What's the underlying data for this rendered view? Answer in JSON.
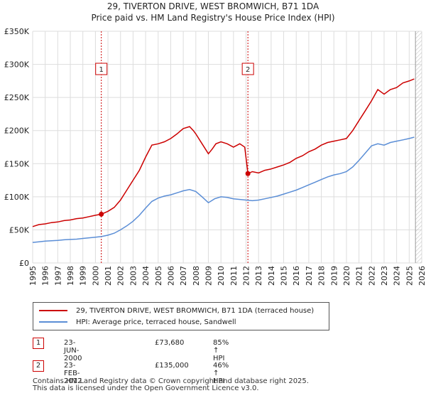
{
  "title": {
    "line1": "29, TIVERTON DRIVE, WEST BROMWICH, B71 1DA",
    "line2": "Price paid vs. HM Land Registry's House Price Index (HPI)"
  },
  "colors": {
    "property": "#cc0000",
    "hpi": "#5b8ed6",
    "marker_line": "#cc0000",
    "grid": "#dddddd"
  },
  "chart_data": {
    "type": "line",
    "title": "Price paid vs. HM Land Registry's House Price Index (HPI)",
    "xlabel": "",
    "ylabel": "",
    "xlim": [
      1995,
      2026
    ],
    "ylim": [
      0,
      350000
    ],
    "yticks": [
      {
        "value": 0,
        "label": "£0"
      },
      {
        "value": 50000,
        "label": "£50K"
      },
      {
        "value": 100000,
        "label": "£100K"
      },
      {
        "value": 150000,
        "label": "£150K"
      },
      {
        "value": 200000,
        "label": "£200K"
      },
      {
        "value": 250000,
        "label": "£250K"
      },
      {
        "value": 300000,
        "label": "£300K"
      },
      {
        "value": 350000,
        "label": "£350K"
      }
    ],
    "xticks": [
      "1995",
      "1996",
      "1997",
      "1998",
      "1999",
      "2000",
      "2001",
      "2002",
      "2003",
      "2004",
      "2005",
      "2006",
      "2007",
      "2008",
      "2009",
      "2010",
      "2011",
      "2012",
      "2013",
      "2014",
      "2015",
      "2016",
      "2017",
      "2018",
      "2019",
      "2020",
      "2021",
      "2022",
      "2023",
      "2024",
      "2025",
      "2026"
    ],
    "grid": true,
    "series": [
      {
        "name": "29, TIVERTON DRIVE, WEST BROMWICH, B71 1DA (terraced house)",
        "color": "#cc0000",
        "x": [
          1995.0,
          1995.5,
          1996.0,
          1996.5,
          1997.0,
          1997.5,
          1998.0,
          1998.5,
          1999.0,
          1999.5,
          2000.0,
          2000.47,
          2001.0,
          2001.5,
          2002.0,
          2002.5,
          2003.0,
          2003.5,
          2004.0,
          2004.5,
          2005.0,
          2005.5,
          2006.0,
          2006.5,
          2007.0,
          2007.5,
          2007.8,
          2008.0,
          2008.5,
          2009.0,
          2009.3,
          2009.6,
          2010.0,
          2010.5,
          2011.0,
          2011.5,
          2011.9,
          2012.15,
          2012.5,
          2013.0,
          2013.5,
          2014.0,
          2014.5,
          2015.0,
          2015.5,
          2016.0,
          2016.5,
          2017.0,
          2017.5,
          2018.0,
          2018.5,
          2019.0,
          2019.5,
          2020.0,
          2020.5,
          2021.0,
          2021.5,
          2022.0,
          2022.5,
          2023.0,
          2023.5,
          2024.0,
          2024.5,
          2025.0,
          2025.4
        ],
        "values": [
          55000,
          58000,
          59000,
          61000,
          62000,
          64000,
          65000,
          67000,
          68000,
          70000,
          72000,
          73680,
          78000,
          84000,
          95000,
          110000,
          125000,
          140000,
          160000,
          178000,
          180000,
          183000,
          188000,
          195000,
          203000,
          206000,
          200000,
          195000,
          180000,
          165000,
          172000,
          180000,
          183000,
          180000,
          175000,
          180000,
          175000,
          135000,
          138000,
          136000,
          140000,
          142000,
          145000,
          148000,
          152000,
          158000,
          162000,
          168000,
          172000,
          178000,
          182000,
          184000,
          186000,
          188000,
          200000,
          215000,
          230000,
          245000,
          262000,
          255000,
          262000,
          265000,
          272000,
          275000,
          278000
        ]
      },
      {
        "name": "HPI: Average price, terraced house, Sandwell",
        "color": "#5b8ed6",
        "x": [
          1995.0,
          1995.5,
          1996.0,
          1996.5,
          1997.0,
          1997.5,
          1998.0,
          1998.5,
          1999.0,
          1999.5,
          2000.0,
          2000.5,
          2001.0,
          2001.5,
          2002.0,
          2002.5,
          2003.0,
          2003.5,
          2004.0,
          2004.5,
          2005.0,
          2005.5,
          2006.0,
          2006.5,
          2007.0,
          2007.5,
          2008.0,
          2008.5,
          2009.0,
          2009.5,
          2010.0,
          2010.5,
          2011.0,
          2011.5,
          2012.0,
          2012.5,
          2013.0,
          2013.5,
          2014.0,
          2014.5,
          2015.0,
          2015.5,
          2016.0,
          2016.5,
          2017.0,
          2017.5,
          2018.0,
          2018.5,
          2019.0,
          2019.5,
          2020.0,
          2020.5,
          2021.0,
          2021.5,
          2022.0,
          2022.5,
          2023.0,
          2023.5,
          2024.0,
          2024.5,
          2025.0,
          2025.4
        ],
        "values": [
          31000,
          32000,
          33000,
          33500,
          34000,
          35000,
          35500,
          36000,
          37000,
          38000,
          39000,
          40000,
          42000,
          45000,
          50000,
          56000,
          63000,
          72000,
          83000,
          93000,
          98000,
          101000,
          103000,
          106000,
          109000,
          111000,
          108000,
          100000,
          91000,
          97000,
          100000,
          99000,
          97000,
          96000,
          95000,
          94000,
          95000,
          97000,
          99000,
          101000,
          104000,
          107000,
          110000,
          114000,
          118000,
          122000,
          126000,
          130000,
          133000,
          135000,
          138000,
          145000,
          155000,
          166000,
          177000,
          180000,
          178000,
          182000,
          184000,
          186000,
          188000,
          190000
        ]
      }
    ],
    "sales": [
      {
        "id": "1",
        "year": 2000.47,
        "value": 73680
      },
      {
        "id": "2",
        "year": 2012.15,
        "value": 135000
      }
    ],
    "legend_position": "bottom"
  },
  "legend": {
    "property_label": "29, TIVERTON DRIVE, WEST BROMWICH, B71 1DA (terraced house)",
    "hpi_label": "HPI: Average price, terraced house, Sandwell"
  },
  "transactions": [
    {
      "num": "1",
      "date": "23-JUN-2000",
      "price": "£73,680",
      "hpi": "85% ↑ HPI"
    },
    {
      "num": "2",
      "date": "23-FEB-2012",
      "price": "£135,000",
      "hpi": "46% ↑ HPI"
    }
  ],
  "footer": {
    "line1": "Contains HM Land Registry data © Crown copyright and database right 2025.",
    "line2": "This data is licensed under the Open Government Licence v3.0."
  }
}
